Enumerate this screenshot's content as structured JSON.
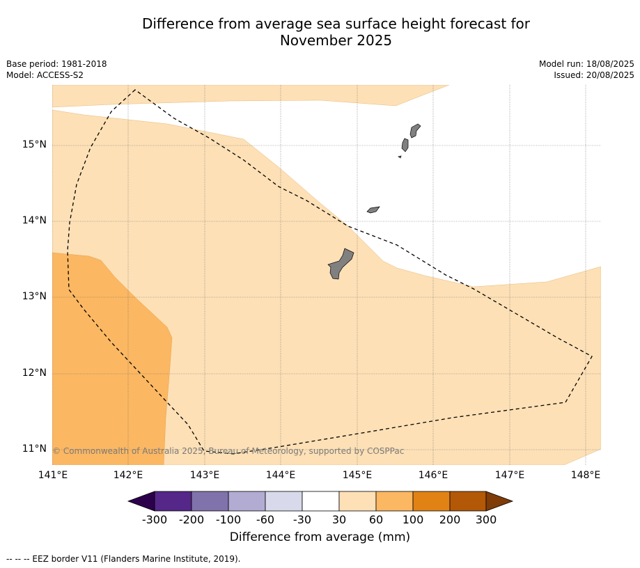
{
  "title_line1": "Difference from average sea surface height forecast for",
  "title_line2": "November 2025",
  "meta_left": [
    "Base period: 1981-2018",
    "Model: ACCESS-S2"
  ],
  "meta_right": [
    "Model run: 18/08/2025",
    "Issued: 20/08/2025"
  ],
  "copyright": "© Commonwealth of Australia 2025, Bureau of Meteorology, supported by COSPPac",
  "footer": "-- -- -- EEZ border V11 (Flanders Marine Institute, 2019).",
  "map": {
    "lat_labels": [
      "15°N",
      "14°N",
      "13°N",
      "12°N",
      "11°N"
    ],
    "lon_labels": [
      "141°E",
      "142°E",
      "143°E",
      "144°E",
      "145°E",
      "146°E",
      "147°E",
      "148°E"
    ],
    "grid": true
  },
  "colorbar": {
    "title": "Difference from average (mm)",
    "labels": [
      "-300",
      "-200",
      "-100",
      "-60",
      "-30",
      "30",
      "60",
      "100",
      "200",
      "300"
    ],
    "colors": [
      "#2d004b",
      "#542788",
      "#8073ac",
      "#b2abd2",
      "#d8daeb",
      "#ffffff",
      "#fde0b6",
      "#fbb762",
      "#e08214",
      "#b35806",
      "#7f3b08"
    ]
  },
  "legend_colors": {
    "land": "#808080",
    "anomaly_30_60": "#fde0b6",
    "anomaly_60_100": "#fbb762"
  }
}
